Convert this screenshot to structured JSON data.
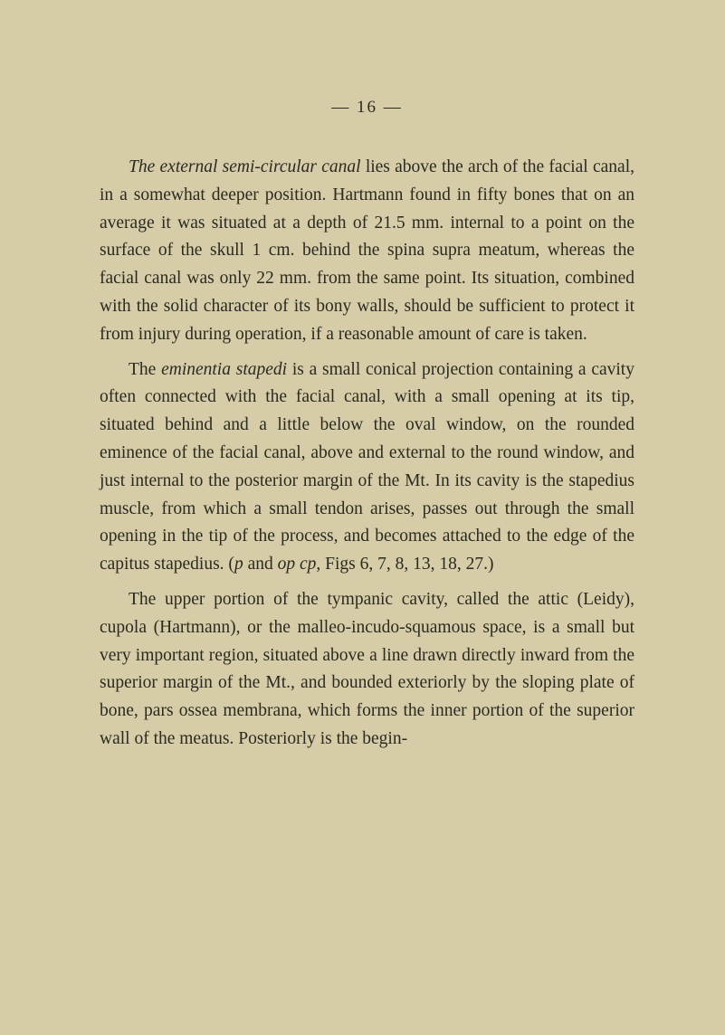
{
  "page_number": "— 16 —",
  "paragraphs": {
    "p1": {
      "prefix": "",
      "italic1": "The external semi-circular canal",
      "text1": " lies above the arch of the facial canal, in a somewhat deeper position. Hartmann found in fifty bones that on an average it was situated at a depth of 21.5 mm. internal to a point on the surface of the skull 1 cm. behind the spina supra meatum, whereas the facial canal was only 22 mm. from the same point. Its situation, combined with the solid character of its bony walls, should be sufficient to protect it from injury during operation, if a reasonable amount of care is taken."
    },
    "p2": {
      "prefix": "The ",
      "italic1": "eminentia stapedi",
      "text1": " is a small conical projection containing a cavity often connected with the facial canal, with a small opening at its tip, situated behind and a little below the oval window, on the rounded eminence of the facial canal, above and external to the round window, and just internal to the posterior margin of the Mt. In its cavity is the stapedius muscle, from which a small tendon arises, passes out through the small opening in the tip of the process, and becomes attached to the edge of the capitus stapedius. (",
      "italic2": "p",
      "text2": " and ",
      "italic3": "op cp",
      "text3": ", Figs 6, 7, 8, 13, 18, 27.)"
    },
    "p3": {
      "text1": "The upper portion of the tympanic cavity, called the attic (Leidy), cupola (Hartmann), or the malleo-incudo-squamous space, is a small but very important region, situated above a line drawn directly inward from the superior margin of the Mt., and bounded exteriorly by the sloping plate of bone, pars ossea membrana, which forms the inner portion of the superior wall of the meatus. Posteriorly is the begin-"
    }
  }
}
